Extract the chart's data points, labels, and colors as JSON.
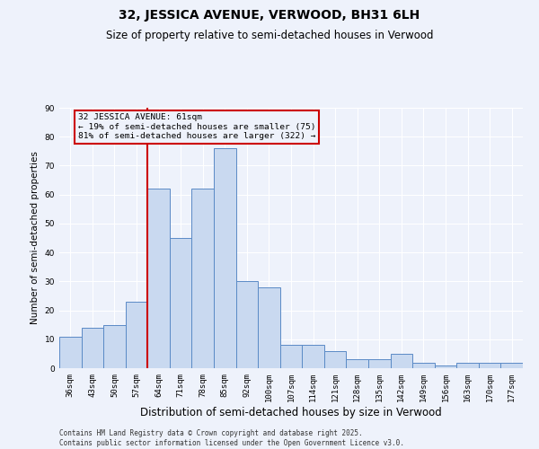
{
  "title_line1": "32, JESSICA AVENUE, VERWOOD, BH31 6LH",
  "title_line2": "Size of property relative to semi-detached houses in Verwood",
  "xlabel": "Distribution of semi-detached houses by size in Verwood",
  "ylabel": "Number of semi-detached properties",
  "categories": [
    "36sqm",
    "43sqm",
    "50sqm",
    "57sqm",
    "64sqm",
    "71sqm",
    "78sqm",
    "85sqm",
    "92sqm",
    "100sqm",
    "107sqm",
    "114sqm",
    "121sqm",
    "128sqm",
    "135sqm",
    "142sqm",
    "149sqm",
    "156sqm",
    "163sqm",
    "170sqm",
    "177sqm"
  ],
  "values": [
    11,
    14,
    15,
    23,
    62,
    45,
    62,
    76,
    30,
    28,
    8,
    8,
    6,
    3,
    3,
    5,
    2,
    1,
    2,
    2,
    2
  ],
  "bar_color": "#c9d9f0",
  "bar_edge_color": "#5a8ac6",
  "vline_color": "#cc0000",
  "annotation_text": "32 JESSICA AVENUE: 61sqm\n← 19% of semi-detached houses are smaller (75)\n81% of semi-detached houses are larger (322) →",
  "annotation_box_color": "#cc0000",
  "ylim": [
    0,
    90
  ],
  "yticks": [
    0,
    10,
    20,
    30,
    40,
    50,
    60,
    70,
    80,
    90
  ],
  "background_color": "#eef2fb",
  "grid_color": "#ffffff",
  "footer_text": "Contains HM Land Registry data © Crown copyright and database right 2025.\nContains public sector information licensed under the Open Government Licence v3.0.",
  "title_fontsize": 10,
  "subtitle_fontsize": 8.5,
  "tick_fontsize": 6.5,
  "ylabel_fontsize": 7.5,
  "xlabel_fontsize": 8.5,
  "footer_fontsize": 5.5
}
